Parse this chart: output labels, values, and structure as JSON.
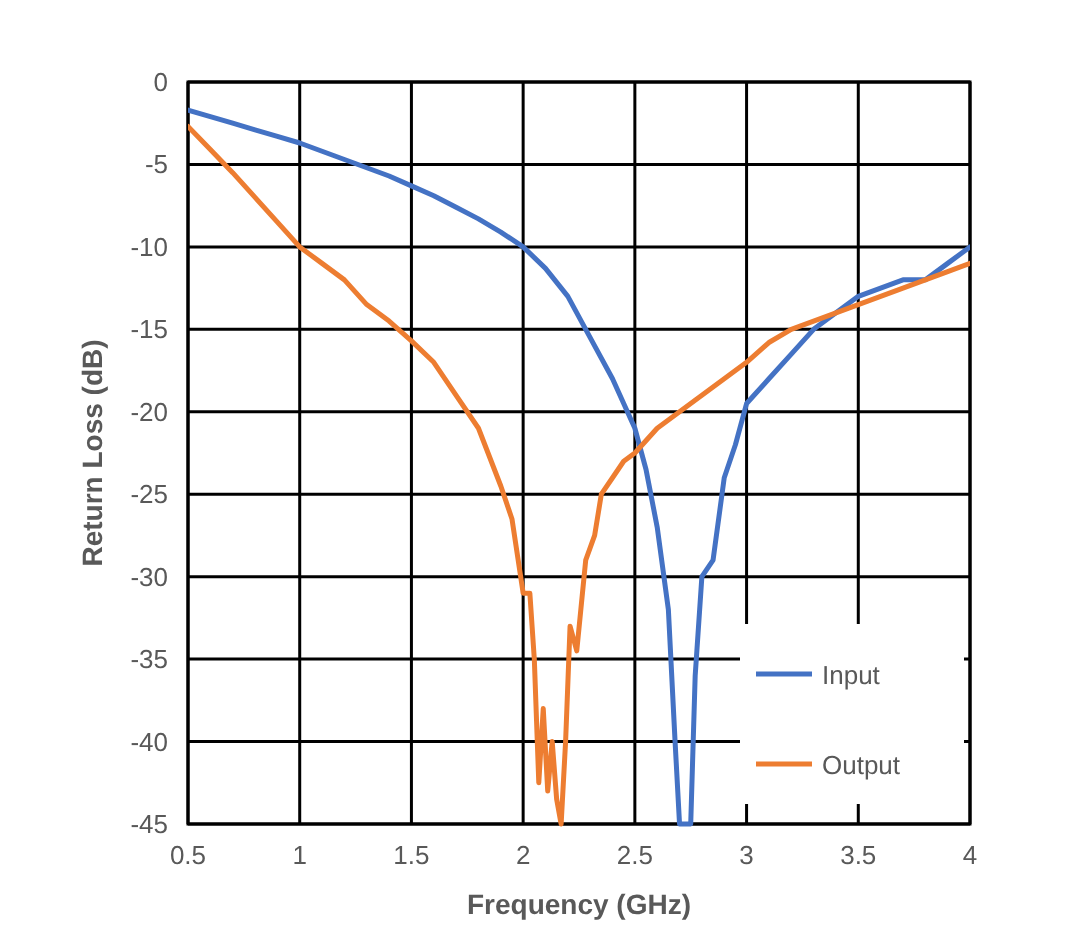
{
  "chart_data": {
    "type": "line",
    "xlabel": "Frequency (GHz)",
    "ylabel": "Return Loss (dB)",
    "xlim": [
      0.5,
      4
    ],
    "xticks": [
      0.5,
      1,
      1.5,
      2,
      2.5,
      3,
      3.5,
      4
    ],
    "ylim": [
      -45,
      0
    ],
    "yticks": [
      -45,
      -40,
      -35,
      -30,
      -25,
      -20,
      -15,
      -10,
      -5,
      0
    ],
    "grid": true,
    "legend": "bottom right",
    "marker": "none",
    "line_style": "solid",
    "series": [
      {
        "name": "Input",
        "color": "#4472c4",
        "x": [
          0.5,
          0.6,
          0.7,
          0.8,
          0.9,
          1.0,
          1.1,
          1.2,
          1.3,
          1.4,
          1.5,
          1.6,
          1.7,
          1.8,
          1.9,
          2.0,
          2.1,
          2.2,
          2.3,
          2.4,
          2.5,
          2.55,
          2.6,
          2.65,
          2.68,
          2.7,
          2.75,
          2.77,
          2.8,
          2.85,
          2.9,
          2.95,
          3.0,
          3.1,
          3.2,
          3.3,
          3.4,
          3.5,
          3.6,
          3.7,
          3.8,
          3.9,
          4.0
        ],
        "values": [
          -1.7,
          -2.1,
          -2.5,
          -2.9,
          -3.3,
          -3.7,
          -4.2,
          -4.7,
          -5.2,
          -5.7,
          -6.3,
          -6.9,
          -7.6,
          -8.3,
          -9.1,
          -10,
          -11.3,
          -13,
          -15.5,
          -18,
          -21,
          -23.5,
          -27,
          -32,
          -40,
          -45,
          -45,
          -36,
          -30,
          -29,
          -24,
          -22,
          -19.5,
          -18,
          -16.5,
          -15,
          -14,
          -13,
          -12.5,
          -12,
          -12,
          -11,
          -10
        ]
      },
      {
        "name": "Output",
        "color": "#ed7d31",
        "x": [
          0.5,
          0.6,
          0.7,
          0.8,
          0.9,
          1.0,
          1.1,
          1.2,
          1.3,
          1.4,
          1.5,
          1.6,
          1.7,
          1.8,
          1.9,
          1.95,
          2.0,
          2.03,
          2.05,
          2.07,
          2.09,
          2.11,
          2.13,
          2.15,
          2.17,
          2.19,
          2.21,
          2.24,
          2.28,
          2.32,
          2.35,
          2.4,
          2.45,
          2.5,
          2.6,
          2.7,
          2.8,
          2.9,
          3.0,
          3.1,
          3.2,
          3.3,
          3.4,
          3.5,
          3.6,
          3.7,
          3.8,
          3.9,
          4.0
        ],
        "values": [
          -2.7,
          -4.1,
          -5.5,
          -7,
          -8.5,
          -10,
          -11,
          -12,
          -13.5,
          -14.5,
          -15.7,
          -17,
          -19,
          -21,
          -24.5,
          -26.5,
          -31,
          -31,
          -35,
          -42.5,
          -38,
          -43,
          -40,
          -43.5,
          -45,
          -40,
          -33,
          -34.5,
          -29,
          -27.5,
          -25,
          -24,
          -23,
          -22.5,
          -21,
          -20,
          -19,
          -18,
          -17,
          -15.8,
          -15,
          -14.5,
          -14,
          -13.5,
          -13,
          -12.5,
          -12,
          -11.5,
          -11
        ]
      }
    ]
  }
}
